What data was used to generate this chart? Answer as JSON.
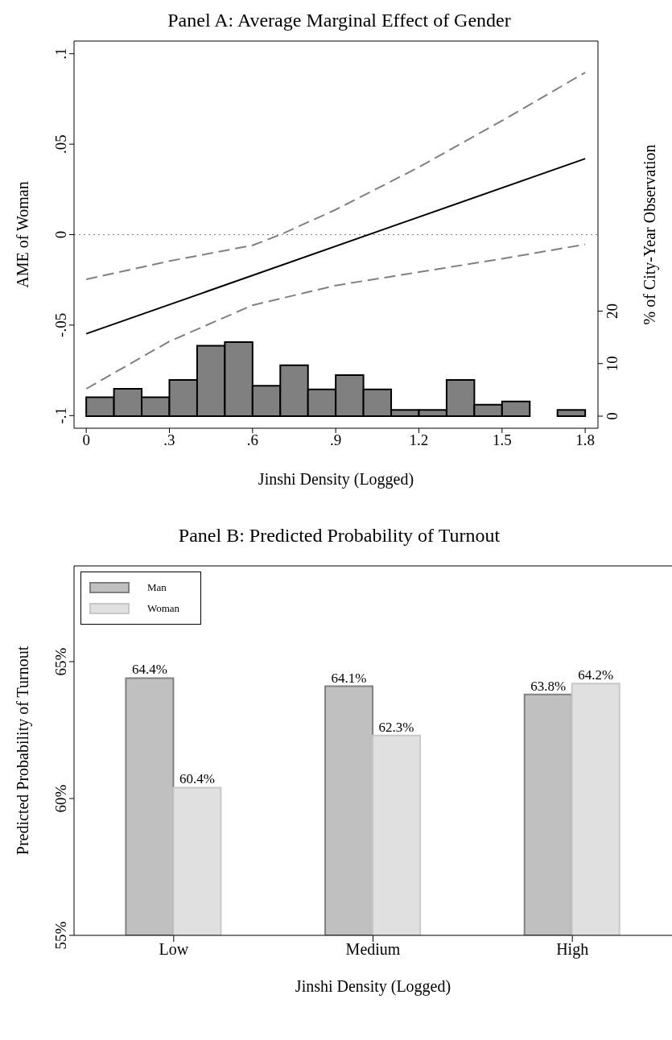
{
  "chart_data": [
    {
      "type": "line",
      "title": "Panel A: Average Marginal Effect of Gender",
      "xlabel": "Jinshi Density (Logged)",
      "ylabel": "AME of Woman",
      "y2label": "% of City-Year Observation",
      "xlim": [
        -0.044,
        1.846
      ],
      "xticks": [
        0,
        {
          "value": 0.3,
          "label": ".3"
        },
        {
          "value": 0.6,
          "label": ".6"
        },
        {
          "value": 0.9,
          "label": ".9"
        },
        1.2,
        1.5,
        1.8
      ],
      "ylim": [
        -0.107,
        0.107
      ],
      "yticks": [
        {
          "value": -0.1,
          "label": "-.1"
        },
        {
          "value": -0.05,
          "label": "-.05"
        },
        0,
        {
          "value": 0.05,
          "label": ".05"
        },
        {
          "value": 0.1,
          "label": ".1"
        }
      ],
      "y2lim": [
        -2.3,
        71.4
      ],
      "y2ticks": [
        0,
        10,
        20
      ],
      "ref_lines": [
        {
          "axis": "y",
          "value": 0,
          "color": "#808080",
          "line_style": "dotted"
        }
      ],
      "series": [
        {
          "type": "line",
          "color": "#000000",
          "line_style": "solid",
          "x": [
            0,
            1.8
          ],
          "values": [
            -0.0548,
            0.042
          ]
        },
        {
          "type": "line",
          "color": "#808080",
          "line_style": "dashed",
          "x": [
            0,
            0.3,
            0.6,
            0.7,
            0.9,
            1.2,
            1.5,
            1.8
          ],
          "values": [
            -0.0247,
            -0.0146,
            -0.0059,
            0,
            0.0138,
            0.0373,
            0.063,
            0.0896
          ]
        },
        {
          "type": "line",
          "color": "#808080",
          "line_style": "dashed",
          "x": [
            0,
            0.3,
            0.6,
            0.9,
            1.2,
            1.5,
            1.8
          ],
          "values": [
            -0.0852,
            -0.059,
            -0.039,
            -0.0281,
            -0.0207,
            -0.0133,
            -0.0054
          ]
        },
        {
          "type": "histogram",
          "axis": "y2",
          "color": "#808080",
          "bins": [
            0,
            0.1,
            0.2,
            0.3,
            0.4,
            0.5,
            0.6,
            0.7,
            0.8,
            0.9,
            1.0,
            1.1,
            1.2,
            1.3,
            1.4,
            1.5,
            1.6,
            1.7,
            1.8
          ],
          "values": [
            3.6,
            5.2,
            3.6,
            6.9,
            13.4,
            14.1,
            5.8,
            9.7,
            5.1,
            7.8,
            5.1,
            1.2,
            1.2,
            6.9,
            2.2,
            2.8,
            0,
            1.2
          ]
        }
      ]
    },
    {
      "type": "bar",
      "title": "Panel B: Predicted Probability of Turnout",
      "xlabel": "Jinshi Density (Logged)",
      "ylabel": "Predicted Probability of Turnout",
      "categories": [
        "Low",
        "Medium",
        "High"
      ],
      "ylim": [
        55,
        68.5
      ],
      "yticks": [
        {
          "value": 55,
          "label": "55%"
        },
        {
          "value": 60,
          "label": "60%"
        },
        {
          "value": 65,
          "label": "65%"
        }
      ],
      "legend": "top left",
      "series": [
        {
          "name": "Man",
          "color": "#c0c0c0",
          "values": [
            64.4,
            64.1,
            63.8
          ],
          "value_labels": [
            "64.4%",
            "64.1%",
            "63.8%"
          ]
        },
        {
          "name": "Woman",
          "color": "#e0e0e0",
          "values": [
            60.4,
            62.3,
            64.2
          ],
          "value_labels": [
            "60.4%",
            "62.3%",
            "64.2%"
          ]
        }
      ]
    }
  ]
}
